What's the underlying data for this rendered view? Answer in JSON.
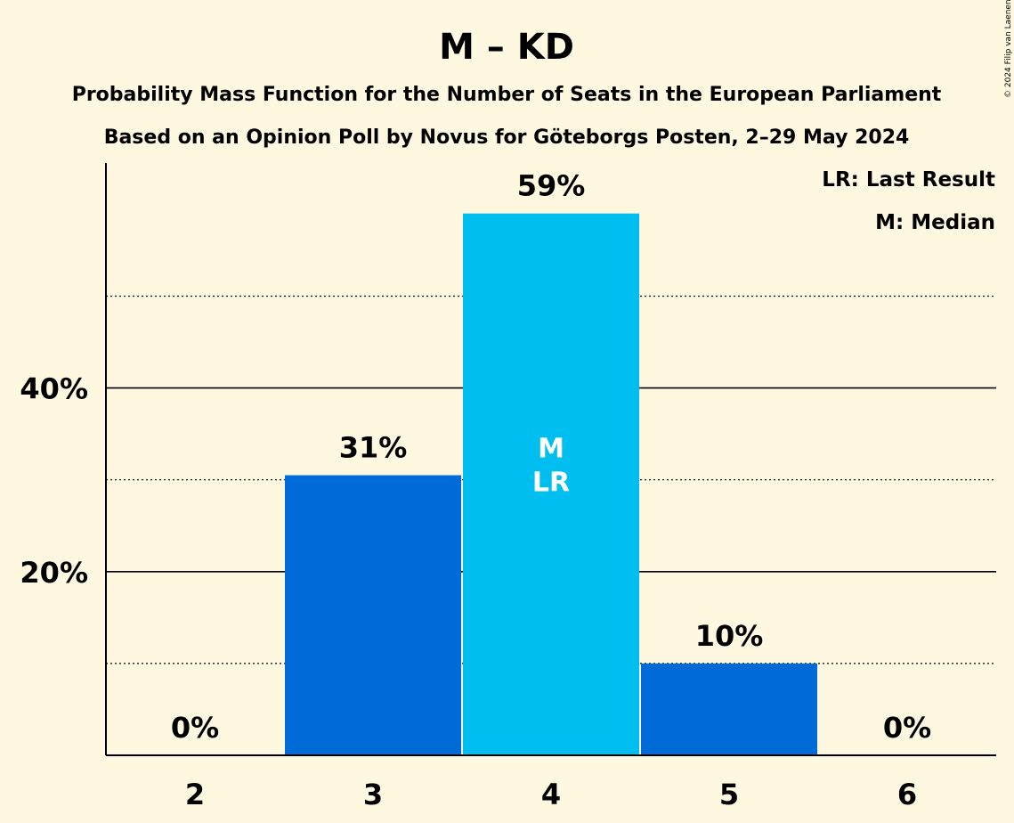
{
  "chart_data": {
    "type": "bar",
    "title": "M – KD",
    "subtitle1": "Probability Mass Function for the Number of Seats in the European Parliament",
    "subtitle2": "Based on an Opinion Poll by Novus for Göteborgs Posten, 2–29 May 2024",
    "copyright": "© 2024 Filip van Laenen",
    "legend": {
      "lr": "LR: Last Result",
      "m": "M: Median",
      "placement": "top-right"
    },
    "categories": [
      "2",
      "3",
      "4",
      "5",
      "6"
    ],
    "values": [
      0,
      30.5,
      59,
      10,
      0
    ],
    "value_labels": [
      "0%",
      "31%",
      "59%",
      "10%",
      "0%"
    ],
    "bar_colors": [
      "#006BD8",
      "#006BD8",
      "#00BEEF",
      "#006BD8",
      "#006BD8"
    ],
    "median_index": 2,
    "last_result_index": 2,
    "median_marker": "M",
    "last_result_marker": "LR",
    "ylim": [
      0,
      64.5
    ],
    "y_ticks_major": [
      20,
      40
    ],
    "y_tick_labels": [
      "20%",
      "40%"
    ],
    "y_ticks_minor": [
      10,
      30,
      50
    ],
    "grid": true
  }
}
